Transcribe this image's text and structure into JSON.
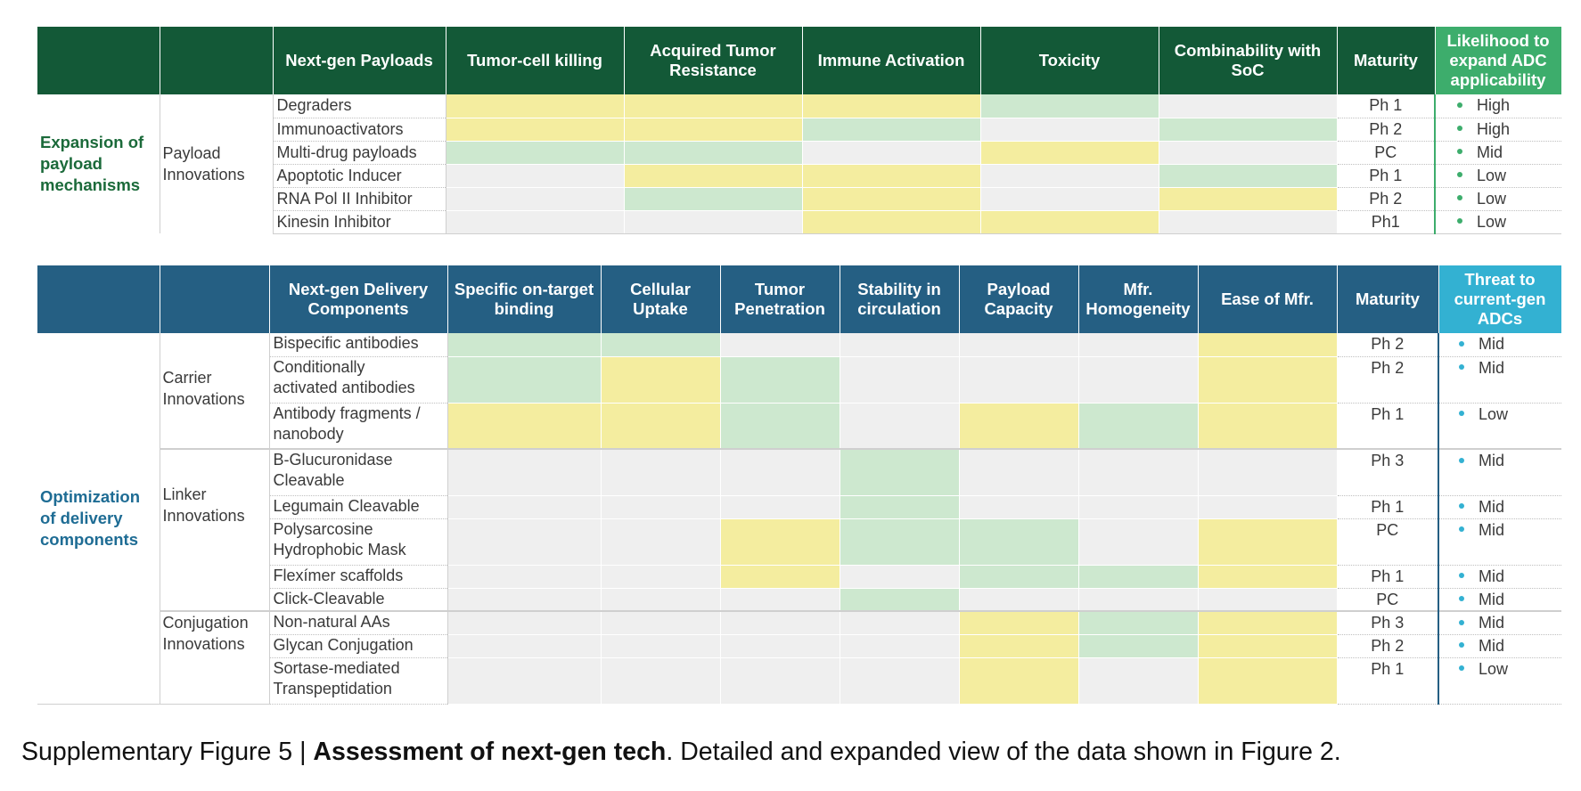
{
  "payload_table": {
    "headers": [
      "",
      "",
      "Next-gen Payloads",
      "Tumor-cell killing",
      "Acquired Tumor Resistance",
      "Immune Activation",
      "Toxicity",
      "Combinability with SoC",
      "Maturity",
      "Likelihood to expand ADC applicability"
    ],
    "category": "Expansion of payload mechanisms",
    "subgroup": "Payload Innovations",
    "rows": [
      {
        "name": "Degraders",
        "cells": [
          "y",
          "y",
          "y",
          "g",
          "e"
        ],
        "maturity": "Ph 1",
        "rating": "High"
      },
      {
        "name": "Immunoactivators",
        "cells": [
          "y",
          "y",
          "g",
          "e",
          "g"
        ],
        "maturity": "Ph 2",
        "rating": "High"
      },
      {
        "name": "Multi-drug payloads",
        "cells": [
          "g",
          "g",
          "e",
          "y",
          "e"
        ],
        "maturity": "PC",
        "rating": "Mid"
      },
      {
        "name": "Apoptotic Inducer",
        "cells": [
          "e",
          "y",
          "y",
          "e",
          "g"
        ],
        "maturity": "Ph 1",
        "rating": "Low"
      },
      {
        "name": "RNA Pol II Inhibitor",
        "cells": [
          "e",
          "g",
          "y",
          "e",
          "y"
        ],
        "maturity": "Ph 2",
        "rating": "Low"
      },
      {
        "name": "Kinesin Inhibitor",
        "cells": [
          "e",
          "e",
          "y",
          "y",
          "e"
        ],
        "maturity": "Ph1",
        "rating": "Low"
      }
    ]
  },
  "delivery_table": {
    "headers": [
      "",
      "",
      "Next-gen Delivery Components",
      "Specific on-target binding",
      "Cellular Uptake",
      "Tumor Penetration",
      "Stability in circulation",
      "Payload Capacity",
      "Mfr. Homogeneity",
      "Ease of Mfr.",
      "Maturity",
      "Threat to current-gen ADCs"
    ],
    "category": "Optimization of delivery components",
    "groups": [
      {
        "subgroup": "Carrier Innovations",
        "rows": [
          {
            "name": "Bispecific antibodies",
            "cells": [
              "g",
              "g",
              "e",
              "e",
              "e",
              "e",
              "y"
            ],
            "maturity": "Ph 2",
            "rating": "Mid"
          },
          {
            "name": "Conditionally activated antibodies",
            "cells": [
              "g",
              "y",
              "g",
              "e",
              "e",
              "e",
              "y"
            ],
            "maturity": "Ph 2",
            "rating": "Mid"
          },
          {
            "name": "Antibody fragments / nanobody",
            "cells": [
              "y",
              "y",
              "g",
              "e",
              "y",
              "g",
              "y"
            ],
            "maturity": "Ph 1",
            "rating": "Low"
          }
        ]
      },
      {
        "subgroup": "Linker Innovations",
        "rows": [
          {
            "name": "B-Glucuronidase Cleavable",
            "cells": [
              "e",
              "e",
              "e",
              "g",
              "e",
              "e",
              "e"
            ],
            "maturity": "Ph 3",
            "rating": "Mid"
          },
          {
            "name": "Legumain Cleavable",
            "cells": [
              "e",
              "e",
              "e",
              "g",
              "e",
              "e",
              "e"
            ],
            "maturity": "Ph 1",
            "rating": "Mid"
          },
          {
            "name": "Polysarcosine Hydrophobic Mask",
            "cells": [
              "e",
              "e",
              "y",
              "g",
              "g",
              "e",
              "y"
            ],
            "maturity": "PC",
            "rating": "Mid"
          },
          {
            "name": "Flexímer scaffolds",
            "cells": [
              "e",
              "e",
              "y",
              "e",
              "g",
              "g",
              "y"
            ],
            "maturity": "Ph 1",
            "rating": "Mid"
          },
          {
            "name": "Click-Cleavable",
            "cells": [
              "e",
              "e",
              "e",
              "g",
              "e",
              "e",
              "e"
            ],
            "maturity": "PC",
            "rating": "Mid"
          }
        ]
      },
      {
        "subgroup": "Conjugation Innovations",
        "rows": [
          {
            "name": "Non-natural AAs",
            "cells": [
              "e",
              "e",
              "e",
              "e",
              "y",
              "g",
              "y"
            ],
            "maturity": "Ph 3",
            "rating": "Mid"
          },
          {
            "name": "Glycan Conjugation",
            "cells": [
              "e",
              "e",
              "e",
              "e",
              "y",
              "g",
              "y"
            ],
            "maturity": "Ph 2",
            "rating": "Mid"
          },
          {
            "name": "Sortase-mediated Transpeptidation",
            "cells": [
              "e",
              "e",
              "e",
              "e",
              "y",
              "e",
              "y"
            ],
            "maturity": "Ph 1",
            "rating": "Low"
          }
        ]
      }
    ]
  },
  "caption": {
    "label": "Supplementary Figure 5 | ",
    "title": "Assessment of next-gen tech",
    "text": ". Detailed and expanded view of the data shown in Figure 2."
  },
  "colors": {
    "favorable": "#cde8cf",
    "moderate": "#f4ed9f",
    "neutral": "#efefef",
    "header_green": "#135937",
    "header_blue": "#255f83"
  }
}
